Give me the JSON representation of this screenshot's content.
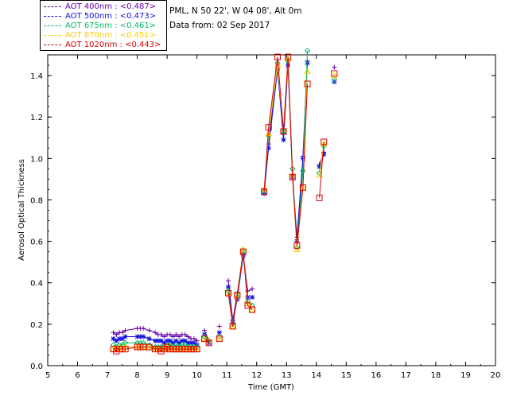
{
  "header": {
    "site": "PML, N 50 22', W 04 08', Alt 0m",
    "date": "Data from: 02 Sep 2017"
  },
  "colors": {
    "aot400": "#6600aa",
    "aot500": "#1111dd",
    "aot675": "#00bb66",
    "aot870": "#ffcc00",
    "aot1020": "#dd0000"
  },
  "legend": [
    {
      "label": "AOT  400nm : <0.487>",
      "color": "#6600aa"
    },
    {
      "label": "AOT  500nm : <0.473>",
      "color": "#1111dd"
    },
    {
      "label": "AOT  675nm : <0.461>",
      "color": "#00bb66"
    },
    {
      "label": "AOT  870nm : <0.451>",
      "color": "#ffcc00"
    },
    {
      "label": "AOT 1020nm : <0.443>",
      "color": "#dd0000"
    }
  ],
  "chart_data": {
    "type": "line",
    "xlabel": "Time (GMT)",
    "ylabel": "Aerosol Optical Thickness",
    "xlim": [
      5,
      20
    ],
    "ylim": [
      0,
      1.5
    ],
    "xticks": [
      "5",
      "6",
      "7",
      "8",
      "9",
      "10",
      "11",
      "12",
      "13",
      "14",
      "15",
      "16",
      "17",
      "18",
      "19",
      "20"
    ],
    "yticks": [
      "0.0",
      "0.2",
      "0.4",
      "0.6",
      "0.8",
      "1.0",
      "1.2",
      "1.4"
    ],
    "grid": false,
    "series": [
      {
        "name": "AOT 400nm",
        "marker": "plus",
        "segments": [
          [
            [
              7.2,
              0.16
            ],
            [
              7.3,
              0.15
            ],
            [
              7.4,
              0.16
            ],
            [
              7.5,
              0.16
            ],
            [
              7.6,
              0.17
            ],
            [
              8.0,
              0.18
            ],
            [
              8.1,
              0.18
            ],
            [
              8.2,
              0.18
            ],
            [
              8.4,
              0.17
            ],
            [
              8.6,
              0.16
            ],
            [
              8.7,
              0.15
            ],
            [
              8.8,
              0.15
            ],
            [
              8.9,
              0.14
            ],
            [
              9.0,
              0.15
            ],
            [
              9.1,
              0.15
            ],
            [
              9.2,
              0.14
            ],
            [
              9.3,
              0.15
            ],
            [
              9.4,
              0.14
            ],
            [
              9.5,
              0.15
            ],
            [
              9.6,
              0.15
            ],
            [
              9.7,
              0.14
            ],
            [
              9.8,
              0.13
            ],
            [
              9.9,
              0.13
            ],
            [
              10.0,
              0.12
            ]
          ],
          [
            [
              10.25,
              0.17
            ],
            [
              10.4,
              0.12
            ]
          ],
          [
            [
              10.75,
              0.19
            ]
          ],
          [
            [
              11.05,
              0.41
            ],
            [
              11.2,
              0.22
            ],
            [
              11.35,
              0.35
            ],
            [
              11.55,
              0.54
            ],
            [
              11.7,
              0.36
            ],
            [
              11.85,
              0.37
            ]
          ],
          [
            [
              12.25,
              0.85
            ],
            [
              12.4,
              1.07
            ],
            [
              12.7,
              1.45
            ],
            [
              12.9,
              1.12
            ],
            [
              13.05,
              1.47
            ],
            [
              13.2,
              0.92
            ],
            [
              13.35,
              0.62
            ],
            [
              13.55,
              1.01
            ],
            [
              13.7,
              1.47
            ]
          ],
          [
            [
              14.1,
              0.97
            ],
            [
              14.25,
              1.03
            ]
          ],
          [
            [
              14.6,
              1.44
            ]
          ]
        ]
      },
      {
        "name": "AOT 500nm",
        "marker": "star",
        "segments": [
          [
            [
              7.2,
              0.13
            ],
            [
              7.3,
              0.12
            ],
            [
              7.4,
              0.13
            ],
            [
              7.5,
              0.13
            ],
            [
              7.6,
              0.14
            ],
            [
              8.0,
              0.14
            ],
            [
              8.1,
              0.14
            ],
            [
              8.2,
              0.14
            ],
            [
              8.4,
              0.13
            ],
            [
              8.6,
              0.12
            ],
            [
              8.7,
              0.12
            ],
            [
              8.8,
              0.12
            ],
            [
              8.9,
              0.11
            ],
            [
              9.0,
              0.12
            ],
            [
              9.1,
              0.12
            ],
            [
              9.2,
              0.11
            ],
            [
              9.3,
              0.12
            ],
            [
              9.4,
              0.11
            ],
            [
              9.5,
              0.12
            ],
            [
              9.6,
              0.12
            ],
            [
              9.7,
              0.11
            ],
            [
              9.8,
              0.11
            ],
            [
              9.9,
              0.11
            ],
            [
              10.0,
              0.1
            ]
          ],
          [
            [
              10.25,
              0.15
            ],
            [
              10.4,
              0.11
            ]
          ],
          [
            [
              10.75,
              0.16
            ]
          ],
          [
            [
              11.05,
              0.38
            ],
            [
              11.2,
              0.21
            ],
            [
              11.35,
              0.32
            ],
            [
              11.55,
              0.53
            ],
            [
              11.7,
              0.33
            ],
            [
              11.85,
              0.33
            ]
          ],
          [
            [
              12.25,
              0.83
            ],
            [
              12.4,
              1.05
            ],
            [
              12.7,
              1.43
            ],
            [
              12.9,
              1.09
            ],
            [
              13.05,
              1.45
            ],
            [
              13.2,
              0.91
            ],
            [
              13.35,
              0.6
            ],
            [
              13.55,
              1.0
            ],
            [
              13.7,
              1.46
            ]
          ],
          [
            [
              14.1,
              0.96
            ],
            [
              14.25,
              1.02
            ]
          ],
          [
            [
              14.6,
              1.37
            ]
          ]
        ]
      },
      {
        "name": "AOT 675nm",
        "marker": "diamond",
        "segments": [
          [
            [
              7.2,
              0.1
            ],
            [
              7.3,
              0.09
            ],
            [
              7.4,
              0.1
            ],
            [
              7.5,
              0.1
            ],
            [
              7.6,
              0.11
            ],
            [
              8.0,
              0.11
            ],
            [
              8.1,
              0.11
            ],
            [
              8.2,
              0.11
            ],
            [
              8.4,
              0.1
            ],
            [
              8.6,
              0.09
            ],
            [
              8.7,
              0.09
            ],
            [
              8.8,
              0.09
            ],
            [
              8.9,
              0.09
            ],
            [
              9.0,
              0.1
            ],
            [
              9.1,
              0.1
            ],
            [
              9.2,
              0.09
            ],
            [
              9.3,
              0.1
            ],
            [
              9.4,
              0.09
            ],
            [
              9.5,
              0.1
            ],
            [
              9.6,
              0.1
            ],
            [
              9.7,
              0.09
            ],
            [
              9.8,
              0.09
            ],
            [
              9.9,
              0.09
            ],
            [
              10.0,
              0.09
            ]
          ],
          [
            [
              10.25,
              0.14
            ],
            [
              10.4,
              0.12
            ]
          ],
          [
            [
              10.75,
              0.14
            ]
          ],
          [
            [
              11.05,
              0.36
            ],
            [
              11.2,
              0.2
            ],
            [
              11.35,
              0.33
            ],
            [
              11.55,
              0.55
            ],
            [
              11.7,
              0.31
            ],
            [
              11.85,
              0.29
            ]
          ],
          [
            [
              12.25,
              0.84
            ],
            [
              12.4,
              1.11
            ],
            [
              12.7,
              1.46
            ],
            [
              12.9,
              1.13
            ],
            [
              13.05,
              1.47
            ],
            [
              13.2,
              0.95
            ],
            [
              13.35,
              0.57
            ],
            [
              13.55,
              0.94
            ],
            [
              13.7,
              1.52
            ]
          ],
          [
            [
              14.1,
              0.93
            ],
            [
              14.25,
              1.06
            ]
          ],
          [
            [
              14.6,
              1.38
            ]
          ]
        ]
      },
      {
        "name": "AOT 870nm",
        "marker": "triangle",
        "segments": [
          [
            [
              7.2,
              0.08
            ],
            [
              7.3,
              0.08
            ],
            [
              7.4,
              0.09
            ],
            [
              7.5,
              0.08
            ],
            [
              7.6,
              0.09
            ],
            [
              8.0,
              0.09
            ],
            [
              8.1,
              0.09
            ],
            [
              8.2,
              0.09
            ],
            [
              8.4,
              0.09
            ],
            [
              8.6,
              0.08
            ],
            [
              8.7,
              0.08
            ],
            [
              8.8,
              0.08
            ],
            [
              8.9,
              0.08
            ],
            [
              9.0,
              0.09
            ],
            [
              9.1,
              0.08
            ],
            [
              9.2,
              0.08
            ],
            [
              9.3,
              0.08
            ],
            [
              9.4,
              0.08
            ],
            [
              9.5,
              0.08
            ],
            [
              9.6,
              0.08
            ],
            [
              9.7,
              0.08
            ],
            [
              9.8,
              0.08
            ],
            [
              9.9,
              0.08
            ],
            [
              10.0,
              0.08
            ]
          ],
          [
            [
              10.25,
              0.13
            ],
            [
              10.4,
              0.12
            ]
          ],
          [
            [
              10.75,
              0.13
            ]
          ],
          [
            [
              11.05,
              0.35
            ],
            [
              11.2,
              0.19
            ],
            [
              11.35,
              0.34
            ],
            [
              11.55,
              0.56
            ],
            [
              11.7,
              0.3
            ],
            [
              11.85,
              0.27
            ]
          ],
          [
            [
              12.25,
              0.85
            ],
            [
              12.4,
              1.12
            ],
            [
              12.7,
              1.45
            ],
            [
              12.9,
              1.14
            ],
            [
              13.05,
              1.48
            ],
            [
              13.2,
              0.92
            ],
            [
              13.35,
              0.56
            ],
            [
              13.55,
              0.86
            ],
            [
              13.7,
              1.42
            ]
          ],
          [
            [
              14.1,
              0.92
            ],
            [
              14.25,
              1.07
            ]
          ],
          [
            [
              14.6,
              1.4
            ]
          ]
        ]
      },
      {
        "name": "AOT 1020nm",
        "marker": "square",
        "segments": [
          [
            [
              7.2,
              0.08
            ],
            [
              7.3,
              0.07
            ],
            [
              7.4,
              0.08
            ],
            [
              7.5,
              0.08
            ],
            [
              7.6,
              0.08
            ],
            [
              8.0,
              0.09
            ],
            [
              8.1,
              0.09
            ],
            [
              8.2,
              0.09
            ],
            [
              8.4,
              0.09
            ],
            [
              8.6,
              0.08
            ],
            [
              8.7,
              0.08
            ],
            [
              8.8,
              0.07
            ],
            [
              8.9,
              0.08
            ],
            [
              9.0,
              0.09
            ],
            [
              9.1,
              0.08
            ],
            [
              9.2,
              0.08
            ],
            [
              9.3,
              0.08
            ],
            [
              9.4,
              0.08
            ],
            [
              9.5,
              0.08
            ],
            [
              9.6,
              0.08
            ],
            [
              9.7,
              0.08
            ],
            [
              9.8,
              0.08
            ],
            [
              9.9,
              0.08
            ],
            [
              10.0,
              0.08
            ]
          ],
          [
            [
              10.25,
              0.13
            ],
            [
              10.4,
              0.11
            ]
          ],
          [
            [
              10.75,
              0.13
            ]
          ],
          [
            [
              11.05,
              0.35
            ],
            [
              11.2,
              0.19
            ],
            [
              11.35,
              0.34
            ],
            [
              11.55,
              0.55
            ],
            [
              11.7,
              0.29
            ],
            [
              11.85,
              0.27
            ]
          ],
          [
            [
              12.25,
              0.84
            ],
            [
              12.4,
              1.15
            ],
            [
              12.7,
              1.49
            ],
            [
              12.9,
              1.13
            ],
            [
              13.05,
              1.49
            ],
            [
              13.2,
              0.91
            ],
            [
              13.35,
              0.58
            ],
            [
              13.55,
              0.86
            ],
            [
              13.7,
              1.36
            ]
          ],
          [
            [
              14.1,
              0.81
            ],
            [
              14.25,
              1.08
            ]
          ],
          [
            [
              14.6,
              1.41
            ]
          ]
        ]
      }
    ]
  }
}
